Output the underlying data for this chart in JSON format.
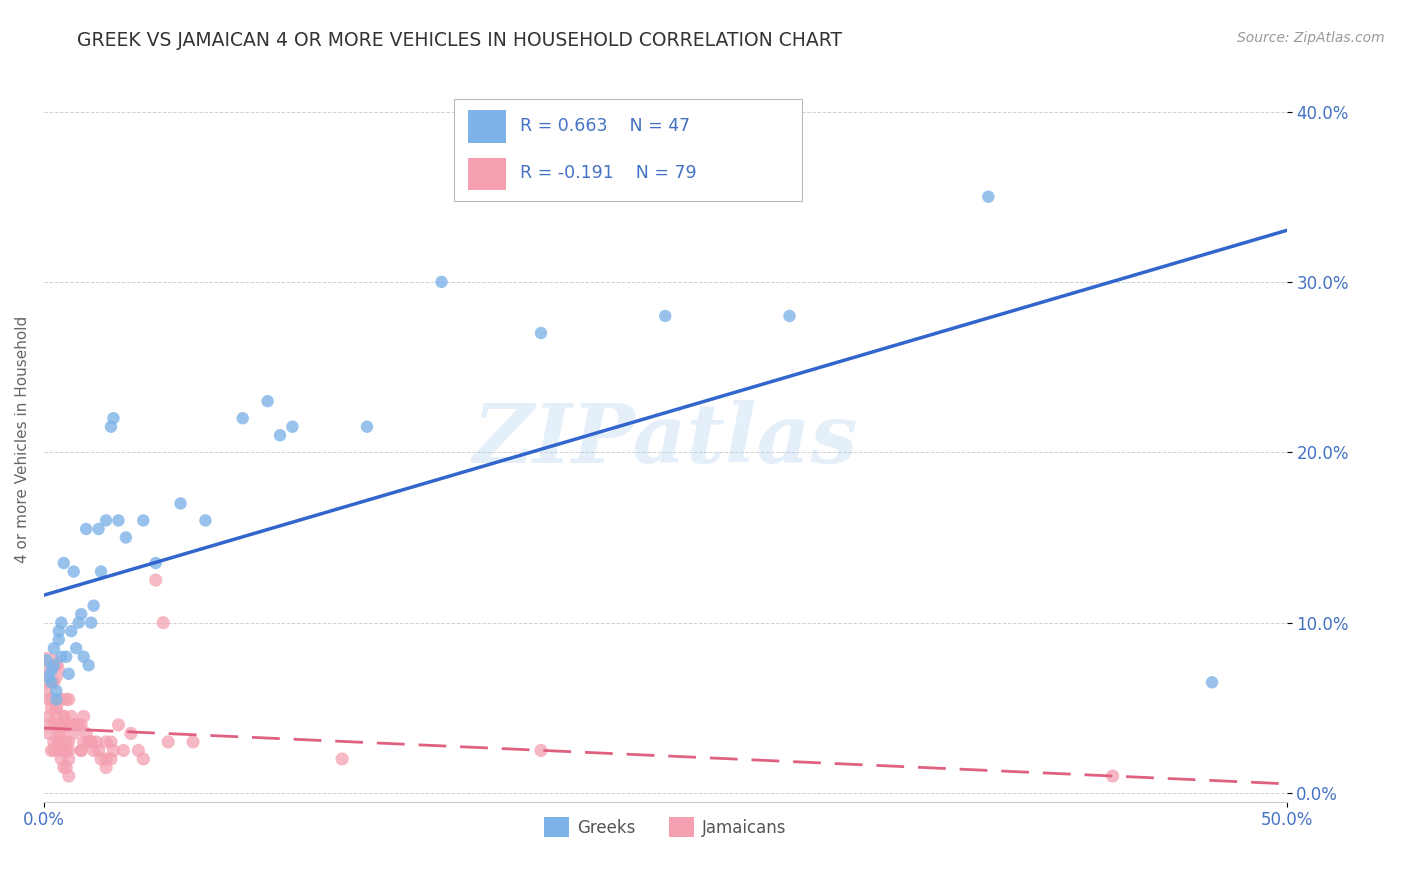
{
  "title": "GREEK VS JAMAICAN 4 OR MORE VEHICLES IN HOUSEHOLD CORRELATION CHART",
  "source": "Source: ZipAtlas.com",
  "ylabel": "4 or more Vehicles in Household",
  "xlim": [
    0.0,
    0.5
  ],
  "ylim": [
    -0.005,
    0.42
  ],
  "x_ticks": [
    0.0,
    0.5
  ],
  "x_tick_labels": [
    "0.0%",
    "50.0%"
  ],
  "y_ticks": [
    0.0,
    0.1,
    0.2,
    0.3,
    0.4
  ],
  "y_tick_labels": [
    "0.0%",
    "10.0%",
    "20.0%",
    "30.0%",
    "40.0%"
  ],
  "greek_color": "#7EB3E8",
  "jamaican_color": "#F4A0B0",
  "greek_line_color": "#3366CC",
  "jamaican_line_color": "#E06080",
  "watermark": "ZIPatlas",
  "greek_scatter": [
    [
      0.001,
      0.078
    ],
    [
      0.002,
      0.068
    ],
    [
      0.003,
      0.072
    ],
    [
      0.003,
      0.065
    ],
    [
      0.004,
      0.085
    ],
    [
      0.004,
      0.075
    ],
    [
      0.005,
      0.055
    ],
    [
      0.005,
      0.06
    ],
    [
      0.006,
      0.095
    ],
    [
      0.006,
      0.09
    ],
    [
      0.007,
      0.08
    ],
    [
      0.007,
      0.1
    ],
    [
      0.008,
      0.135
    ],
    [
      0.009,
      0.08
    ],
    [
      0.01,
      0.07
    ],
    [
      0.011,
      0.095
    ],
    [
      0.012,
      0.13
    ],
    [
      0.013,
      0.085
    ],
    [
      0.014,
      0.1
    ],
    [
      0.015,
      0.105
    ],
    [
      0.016,
      0.08
    ],
    [
      0.017,
      0.155
    ],
    [
      0.018,
      0.075
    ],
    [
      0.019,
      0.1
    ],
    [
      0.02,
      0.11
    ],
    [
      0.022,
      0.155
    ],
    [
      0.023,
      0.13
    ],
    [
      0.025,
      0.16
    ],
    [
      0.027,
      0.215
    ],
    [
      0.028,
      0.22
    ],
    [
      0.03,
      0.16
    ],
    [
      0.033,
      0.15
    ],
    [
      0.04,
      0.16
    ],
    [
      0.045,
      0.135
    ],
    [
      0.055,
      0.17
    ],
    [
      0.065,
      0.16
    ],
    [
      0.08,
      0.22
    ],
    [
      0.09,
      0.23
    ],
    [
      0.095,
      0.21
    ],
    [
      0.1,
      0.215
    ],
    [
      0.13,
      0.215
    ],
    [
      0.16,
      0.3
    ],
    [
      0.2,
      0.27
    ],
    [
      0.25,
      0.28
    ],
    [
      0.3,
      0.28
    ],
    [
      0.38,
      0.35
    ],
    [
      0.47,
      0.065
    ]
  ],
  "jamaican_scatter": [
    [
      0.001,
      0.072
    ],
    [
      0.001,
      0.06
    ],
    [
      0.002,
      0.055
    ],
    [
      0.002,
      0.045
    ],
    [
      0.002,
      0.04
    ],
    [
      0.002,
      0.035
    ],
    [
      0.003,
      0.055
    ],
    [
      0.003,
      0.025
    ],
    [
      0.003,
      0.05
    ],
    [
      0.004,
      0.065
    ],
    [
      0.004,
      0.025
    ],
    [
      0.004,
      0.04
    ],
    [
      0.004,
      0.03
    ],
    [
      0.005,
      0.05
    ],
    [
      0.005,
      0.075
    ],
    [
      0.005,
      0.045
    ],
    [
      0.005,
      0.05
    ],
    [
      0.006,
      0.035
    ],
    [
      0.006,
      0.03
    ],
    [
      0.006,
      0.04
    ],
    [
      0.006,
      0.03
    ],
    [
      0.006,
      0.025
    ],
    [
      0.007,
      0.055
    ],
    [
      0.007,
      0.04
    ],
    [
      0.007,
      0.04
    ],
    [
      0.007,
      0.02
    ],
    [
      0.007,
      0.035
    ],
    [
      0.008,
      0.015
    ],
    [
      0.008,
      0.045
    ],
    [
      0.008,
      0.045
    ],
    [
      0.008,
      0.025
    ],
    [
      0.009,
      0.015
    ],
    [
      0.009,
      0.025
    ],
    [
      0.009,
      0.04
    ],
    [
      0.009,
      0.055
    ],
    [
      0.009,
      0.03
    ],
    [
      0.01,
      0.025
    ],
    [
      0.01,
      0.055
    ],
    [
      0.01,
      0.04
    ],
    [
      0.01,
      0.02
    ],
    [
      0.01,
      0.03
    ],
    [
      0.01,
      0.01
    ],
    [
      0.011,
      0.045
    ],
    [
      0.012,
      0.04
    ],
    [
      0.012,
      0.035
    ],
    [
      0.013,
      0.04
    ],
    [
      0.014,
      0.04
    ],
    [
      0.015,
      0.025
    ],
    [
      0.015,
      0.025
    ],
    [
      0.015,
      0.04
    ],
    [
      0.016,
      0.045
    ],
    [
      0.016,
      0.03
    ],
    [
      0.017,
      0.035
    ],
    [
      0.018,
      0.03
    ],
    [
      0.019,
      0.03
    ],
    [
      0.019,
      0.03
    ],
    [
      0.02,
      0.025
    ],
    [
      0.021,
      0.03
    ],
    [
      0.022,
      0.025
    ],
    [
      0.023,
      0.02
    ],
    [
      0.025,
      0.02
    ],
    [
      0.025,
      0.015
    ],
    [
      0.025,
      0.03
    ],
    [
      0.027,
      0.02
    ],
    [
      0.027,
      0.03
    ],
    [
      0.028,
      0.025
    ],
    [
      0.03,
      0.04
    ],
    [
      0.032,
      0.025
    ],
    [
      0.035,
      0.035
    ],
    [
      0.038,
      0.025
    ],
    [
      0.04,
      0.02
    ],
    [
      0.045,
      0.125
    ],
    [
      0.048,
      0.1
    ],
    [
      0.05,
      0.03
    ],
    [
      0.06,
      0.03
    ],
    [
      0.12,
      0.02
    ],
    [
      0.2,
      0.025
    ],
    [
      0.43,
      0.01
    ]
  ],
  "jamaican_large_size": 700,
  "jamaican_small_size": 90,
  "greek_small_size": 80,
  "greek_large_size": 80
}
